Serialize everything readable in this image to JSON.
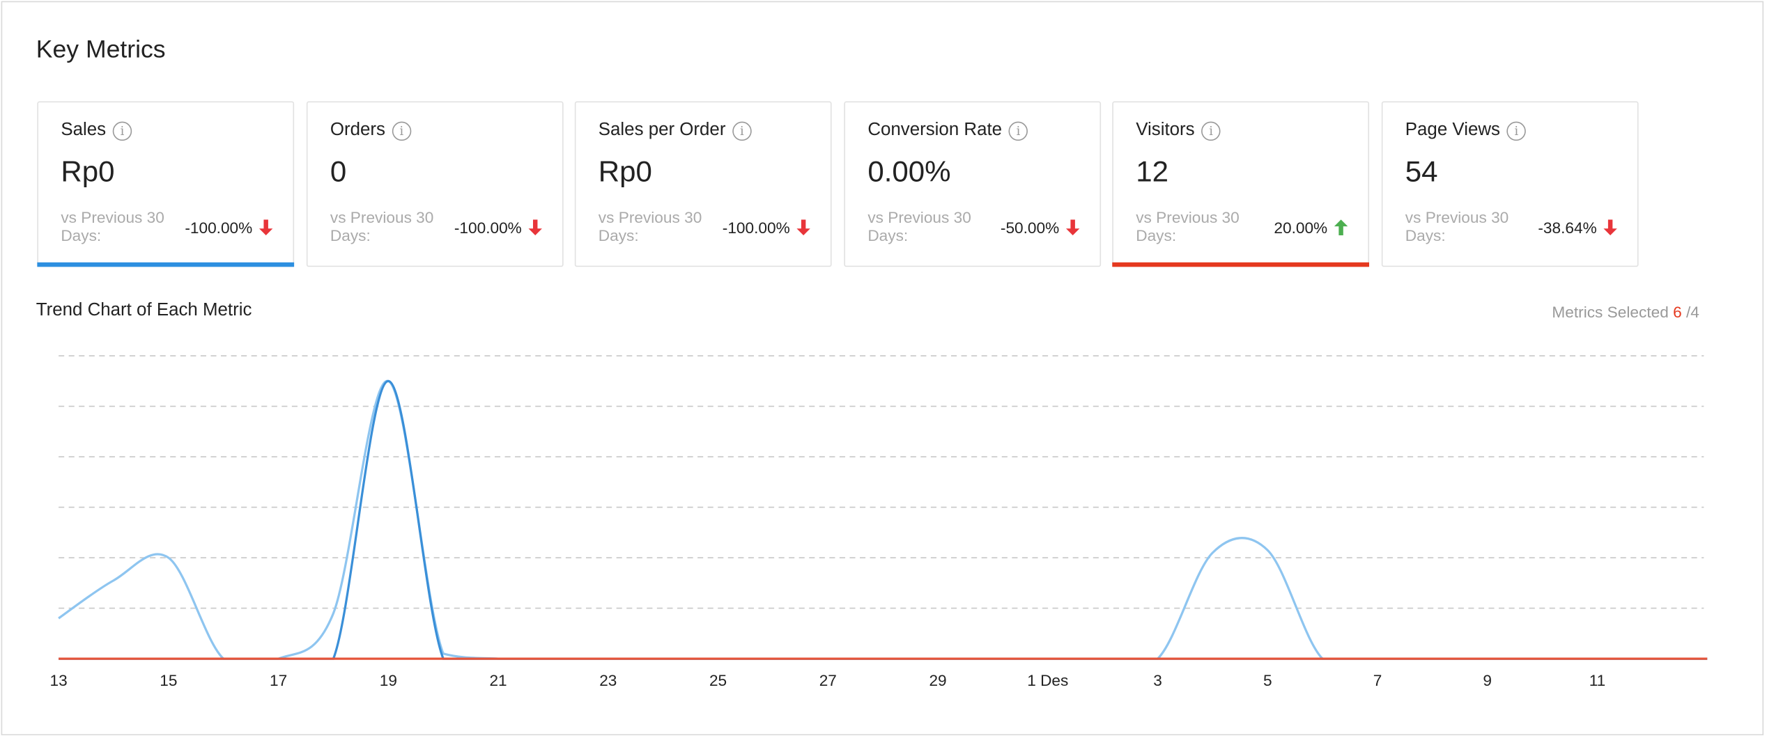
{
  "title": "Key Metrics",
  "cards": [
    {
      "label": "Sales",
      "value": "Rp0",
      "compare": "vs Previous 30 Days:",
      "change": "-100.00%",
      "direction": "down",
      "selected_color": "#2d8fe0"
    },
    {
      "label": "Orders",
      "value": "0",
      "compare": "vs Previous 30 Days:",
      "change": "-100.00%",
      "direction": "down",
      "selected_color": null
    },
    {
      "label": "Sales per Order",
      "value": "Rp0",
      "compare": "vs Previous 30 Days:",
      "change": "-100.00%",
      "direction": "down",
      "selected_color": null
    },
    {
      "label": "Conversion Rate",
      "value": "0.00%",
      "compare": "vs Previous 30 Days:",
      "change": "-50.00%",
      "direction": "down",
      "selected_color": null
    },
    {
      "label": "Visitors",
      "value": "12",
      "compare": "vs Previous 30 Days:",
      "change": "20.00%",
      "direction": "up",
      "selected_color": "#e5391f"
    },
    {
      "label": "Page Views",
      "value": "54",
      "compare": "vs Previous 30 Days:",
      "change": "-38.64%",
      "direction": "down",
      "selected_color": null
    }
  ],
  "trend": {
    "title": "Trend Chart of Each Metric",
    "selected_label": "Metrics Selected",
    "selected_count": "6",
    "selected_max": "/4"
  },
  "colors": {
    "down": "#e8353a",
    "up": "#4caf50",
    "grid": "#c8c8c8"
  },
  "chart_data": {
    "type": "line",
    "x_tick_labels": [
      "13",
      "15",
      "17",
      "19",
      "21",
      "23",
      "25",
      "27",
      "29",
      "1 Des",
      "3",
      "5",
      "7",
      "9",
      "11"
    ],
    "x_days": 30,
    "ylim": [
      0,
      6
    ],
    "grid": true,
    "series": [
      {
        "name": "light-blue",
        "color": "#8ec5f0",
        "values": [
          0.8,
          1.55,
          2.0,
          0,
          0,
          0.9,
          5.5,
          0.1,
          0,
          0,
          0,
          0,
          0,
          0,
          0,
          0,
          0,
          0,
          0,
          0,
          0,
          2.1,
          2.15,
          0,
          0,
          0,
          0,
          0,
          0,
          0,
          0
        ]
      },
      {
        "name": "dark-blue",
        "color": "#3a8fd8",
        "values": [
          0,
          0,
          0,
          0,
          0,
          0,
          5.5,
          0,
          0,
          0,
          0,
          0,
          0,
          0,
          0,
          0,
          0,
          0,
          0,
          0,
          0,
          0,
          0,
          0,
          0,
          0,
          0,
          0,
          0,
          0,
          0
        ]
      },
      {
        "name": "red",
        "color": "#e5543a",
        "values": [
          0,
          0,
          0,
          0,
          0,
          0,
          0,
          0,
          0,
          0,
          0,
          0,
          0,
          0,
          0,
          0,
          0,
          0,
          0,
          0,
          0,
          0,
          0,
          0,
          0,
          0,
          0,
          0,
          0,
          0,
          0
        ]
      }
    ]
  }
}
